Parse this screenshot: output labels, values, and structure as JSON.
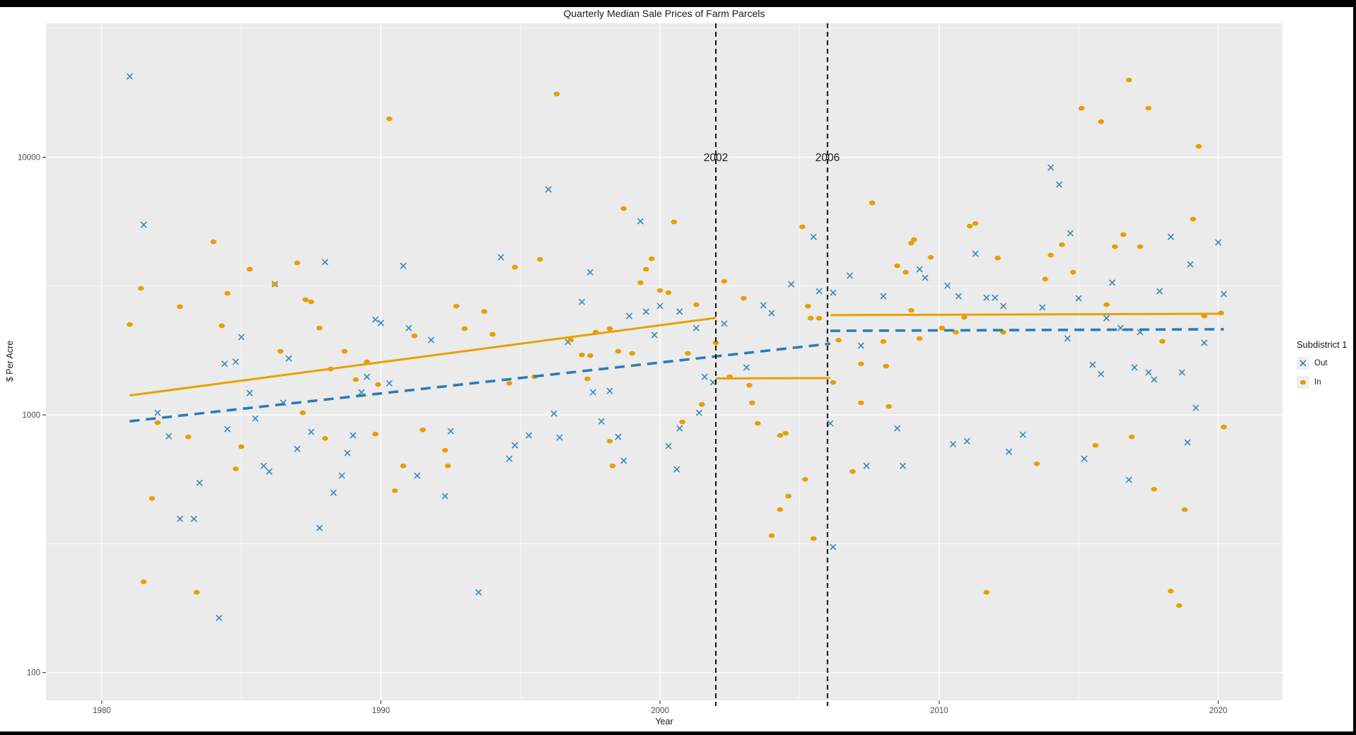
{
  "chart_data": {
    "type": "scatter",
    "title": "Quarterly Median Sale Prices of Farm Parcels",
    "xlabel": "Year",
    "ylabel": "$ Per Acre",
    "x_axis": {
      "range": [
        1978,
        2022.3
      ],
      "ticks": [
        1980,
        1990,
        2000,
        2010,
        2020
      ],
      "minor_ticks": [
        1985,
        1995,
        2005,
        2015
      ]
    },
    "y_axis": {
      "scale": "log10",
      "range": [
        78,
        33100
      ],
      "ticks": [
        100,
        1000,
        10000
      ],
      "tick_labels": [
        "100",
        "1000",
        "10000"
      ],
      "minor_ticks": [
        316,
        3162,
        31623
      ]
    },
    "panel": {
      "bg": "#EBEBEB",
      "grid_major": "#FFFFFF",
      "grid_minor": "#F7F7F7",
      "tick_color": "#333333",
      "tick_label_color": "#4d4d4d"
    },
    "vlines": [
      {
        "x": 2002,
        "label": "2002",
        "color": "#111111"
      },
      {
        "x": 2006,
        "label": "2006",
        "color": "#111111"
      }
    ],
    "legend": {
      "title": "Subdistrict 1",
      "items": [
        {
          "label": "Out",
          "marker": "x",
          "color": "#3787BD"
        },
        {
          "label": "In",
          "marker": "dot",
          "color": "#E69F00"
        }
      ]
    },
    "trend_lines": [
      {
        "series": "In",
        "style": "solid",
        "color": "#E8A000",
        "points": [
          [
            1981.0,
            1190
          ],
          [
            2002.0,
            2380
          ]
        ]
      },
      {
        "series": "In",
        "style": "solid",
        "color": "#E8A000",
        "points": [
          [
            2002.0,
            1385
          ],
          [
            2006.1,
            1390
          ]
        ]
      },
      {
        "series": "In",
        "style": "solid",
        "color": "#E8A000",
        "points": [
          [
            2006.1,
            2440
          ],
          [
            2020.2,
            2470
          ]
        ]
      },
      {
        "series": "Out",
        "style": "dashed",
        "color": "#2C7BB8",
        "points": [
          [
            1981.0,
            945
          ],
          [
            2006.1,
            1890
          ]
        ]
      },
      {
        "series": "Out",
        "style": "dashed",
        "color": "#2C7BB8",
        "points": [
          [
            2006.1,
            2120
          ],
          [
            2020.2,
            2150
          ]
        ]
      }
    ],
    "series": [
      {
        "name": "Out",
        "marker": "x",
        "color": "#3787BD",
        "points": [
          [
            1981,
            20600
          ],
          [
            1981.5,
            5470
          ],
          [
            1986.2,
            3220
          ],
          [
            1985,
            2005
          ],
          [
            1984.4,
            1578
          ],
          [
            1984.8,
            1607
          ],
          [
            1986.7,
            1657
          ],
          [
            1985.3,
            1216
          ],
          [
            1986.5,
            1114
          ],
          [
            1982,
            1019
          ],
          [
            1982.4,
            827
          ],
          [
            1984.5,
            881
          ],
          [
            1985.5,
            969
          ],
          [
            1985.8,
            634
          ],
          [
            1986,
            603
          ],
          [
            1983.5,
            545
          ],
          [
            1982.8,
            395
          ],
          [
            1983.3,
            395
          ],
          [
            1984.2,
            163
          ],
          [
            1988,
            3915
          ],
          [
            1990.8,
            3790
          ],
          [
            1994.3,
            4090
          ],
          [
            1989.8,
            2345
          ],
          [
            1990,
            2275
          ],
          [
            1991,
            2174
          ],
          [
            1991.8,
            1954
          ],
          [
            1989.5,
            1406
          ],
          [
            1989.3,
            1224
          ],
          [
            1990.3,
            1327
          ],
          [
            1987.5,
            859
          ],
          [
            1989,
            832
          ],
          [
            1988.8,
            711
          ],
          [
            1987,
            738
          ],
          [
            1992.5,
            865
          ],
          [
            1994.6,
            676
          ],
          [
            1994.8,
            762
          ],
          [
            1995.3,
            832
          ],
          [
            1988.6,
            581
          ],
          [
            1988.3,
            499
          ],
          [
            1991.3,
            581
          ],
          [
            1992.3,
            484
          ],
          [
            1987.8,
            364
          ],
          [
            1993.5,
            205
          ],
          [
            1996,
            7500
          ],
          [
            1999.3,
            5645
          ],
          [
            1997.5,
            3580
          ],
          [
            1997.2,
            2747
          ],
          [
            2004.7,
            3215
          ],
          [
            1998.9,
            2422
          ],
          [
            1999.5,
            2518
          ],
          [
            2000,
            2645
          ],
          [
            2000.7,
            2518
          ],
          [
            2003.7,
            2662
          ],
          [
            2004,
            2484
          ],
          [
            2002.3,
            2260
          ],
          [
            2001.3,
            2174
          ],
          [
            1999.8,
            2042
          ],
          [
            1996.7,
            1919
          ],
          [
            2001.6,
            1406
          ],
          [
            2003.1,
            1528
          ],
          [
            1998.2,
            1239
          ],
          [
            1997.6,
            1224
          ],
          [
            1996.2,
            1012
          ],
          [
            1997.9,
            944
          ],
          [
            2001.4,
            1019
          ],
          [
            2001.9,
            1337
          ],
          [
            2000.7,
            887
          ],
          [
            2000.3,
            757
          ],
          [
            1998.5,
            822
          ],
          [
            1998.7,
            664
          ],
          [
            2000.6,
            615
          ],
          [
            1996.4,
            817
          ],
          [
            2005.5,
            4910
          ],
          [
            2005.7,
            3020
          ],
          [
            2006.2,
            2983
          ],
          [
            2006.8,
            3470
          ],
          [
            2008,
            2890
          ],
          [
            2009.3,
            3675
          ],
          [
            2009.5,
            3405
          ],
          [
            2010.3,
            3175
          ],
          [
            2010.7,
            2890
          ],
          [
            2011.3,
            4220
          ],
          [
            2011.7,
            2850
          ],
          [
            2012,
            2850
          ],
          [
            2012.3,
            2645
          ],
          [
            2013.7,
            2612
          ],
          [
            2007.2,
            1858
          ],
          [
            2006.1,
            927
          ],
          [
            2008.5,
            887
          ],
          [
            2010.5,
            770
          ],
          [
            2011,
            791
          ],
          [
            2012.5,
            719
          ],
          [
            2013,
            838
          ],
          [
            2007.4,
            634
          ],
          [
            2008.7,
            634
          ],
          [
            2006.2,
            307
          ],
          [
            2014,
            9120
          ],
          [
            2014.3,
            7840
          ],
          [
            2014.7,
            5070
          ],
          [
            2018.3,
            4910
          ],
          [
            2020,
            4670
          ],
          [
            2019,
            3840
          ],
          [
            2016.2,
            3260
          ],
          [
            2015,
            2835
          ],
          [
            2017.9,
            3020
          ],
          [
            2020.2,
            2945
          ],
          [
            2016,
            2375
          ],
          [
            2016.5,
            2175
          ],
          [
            2017.2,
            2095
          ],
          [
            2014.6,
            1980
          ],
          [
            2019.5,
            1905
          ],
          [
            2015.5,
            1567
          ],
          [
            2015.8,
            1442
          ],
          [
            2017,
            1528
          ],
          [
            2017.5,
            1462
          ],
          [
            2017.7,
            1372
          ],
          [
            2018.7,
            1462
          ],
          [
            2019.2,
            1065
          ],
          [
            2018.9,
            782
          ],
          [
            2015.2,
            676
          ],
          [
            2016.8,
            560
          ]
        ]
      },
      {
        "name": "In",
        "marker": "dot",
        "color": "#E69F00",
        "points": [
          [
            1984,
            4700
          ],
          [
            1985.3,
            3675
          ],
          [
            1986.2,
            3215
          ],
          [
            1987,
            3890
          ],
          [
            1981.4,
            3100
          ],
          [
            1982.8,
            2630
          ],
          [
            1984.5,
            2965
          ],
          [
            1981,
            2245
          ],
          [
            1984.3,
            2218
          ],
          [
            1986.4,
            1766
          ],
          [
            1982,
            933
          ],
          [
            1983.1,
            822
          ],
          [
            1985,
            753
          ],
          [
            1984.8,
            618
          ],
          [
            1981.8,
            474
          ],
          [
            1981.5,
            225
          ],
          [
            1983.4,
            205
          ],
          [
            1990.3,
            14100
          ],
          [
            1994.8,
            3743
          ],
          [
            1995.7,
            4015
          ],
          [
            1987.3,
            2800
          ],
          [
            1987.5,
            2747
          ],
          [
            1987.8,
            2174
          ],
          [
            1991.2,
            2028
          ],
          [
            1992.7,
            2645
          ],
          [
            1993,
            2162
          ],
          [
            1993.7,
            2520
          ],
          [
            1994,
            2055
          ],
          [
            1988.7,
            1766
          ],
          [
            1989.5,
            1607
          ],
          [
            1989.1,
            1371
          ],
          [
            1988.2,
            1507
          ],
          [
            1989.9,
            1312
          ],
          [
            1995.5,
            1406
          ],
          [
            1994.6,
            1327
          ],
          [
            1987.2,
            1019
          ],
          [
            1988,
            811
          ],
          [
            1989.8,
            843
          ],
          [
            1991.5,
            875
          ],
          [
            1992.3,
            729
          ],
          [
            1990.8,
            634
          ],
          [
            1990.5,
            508
          ],
          [
            1992.4,
            634
          ],
          [
            1996.3,
            17600
          ],
          [
            1998.7,
            6325
          ],
          [
            2000.5,
            5610
          ],
          [
            1999.7,
            4035
          ],
          [
            1999.5,
            3675
          ],
          [
            1999.3,
            3258
          ],
          [
            2002.3,
            3302
          ],
          [
            2000,
            3040
          ],
          [
            2000.3,
            2983
          ],
          [
            2001.3,
            2679
          ],
          [
            2003,
            2835
          ],
          [
            1996.8,
            1954
          ],
          [
            1997.7,
            2094
          ],
          [
            1998.2,
            2162
          ],
          [
            1997.2,
            1710
          ],
          [
            1997.5,
            1699
          ],
          [
            1998.5,
            1766
          ],
          [
            1999,
            1733
          ],
          [
            2001,
            1733
          ],
          [
            2002,
            1905
          ],
          [
            2002.5,
            1406
          ],
          [
            2003.2,
            1303
          ],
          [
            1997.4,
            1380
          ],
          [
            2001.5,
            1099
          ],
          [
            1998.2,
            791
          ],
          [
            2000.8,
            939
          ],
          [
            2003.3,
            1114
          ],
          [
            2003.5,
            927
          ],
          [
            2004.3,
            832
          ],
          [
            2004.5,
            849
          ],
          [
            2004.6,
            484
          ],
          [
            2004.3,
            429
          ],
          [
            2004,
            340
          ],
          [
            1998.3,
            634
          ],
          [
            2007.6,
            6650
          ],
          [
            2005.1,
            5370
          ],
          [
            2011.1,
            5405
          ],
          [
            2011.3,
            5534
          ],
          [
            2009,
            4645
          ],
          [
            2009.1,
            4790
          ],
          [
            2009.7,
            4090
          ],
          [
            2012.1,
            4065
          ],
          [
            2008.5,
            3790
          ],
          [
            2008.8,
            3580
          ],
          [
            2013.8,
            3365
          ],
          [
            2005.4,
            2375
          ],
          [
            2005.7,
            2375
          ],
          [
            2005.3,
            2645
          ],
          [
            2010.9,
            2392
          ],
          [
            2009,
            2548
          ],
          [
            2006.4,
            1950
          ],
          [
            2008,
            1928
          ],
          [
            2009.3,
            1978
          ],
          [
            2010.1,
            2174
          ],
          [
            2010.6,
            2094
          ],
          [
            2012.3,
            2094
          ],
          [
            2007.2,
            1578
          ],
          [
            2008.1,
            1546
          ],
          [
            2006.2,
            1337
          ],
          [
            2007.2,
            1114
          ],
          [
            2008.2,
            1079
          ],
          [
            2006.9,
            603
          ],
          [
            2013.5,
            646
          ],
          [
            2005.2,
            562
          ],
          [
            2005.5,
            331
          ],
          [
            2011.7,
            205
          ],
          [
            2016.8,
            19950
          ],
          [
            2015.1,
            15500
          ],
          [
            2017.5,
            15500
          ],
          [
            2015.8,
            13740
          ],
          [
            2019.3,
            11030
          ],
          [
            2019.1,
            5755
          ],
          [
            2016.6,
            5010
          ],
          [
            2014.4,
            4580
          ],
          [
            2014,
            4170
          ],
          [
            2016.3,
            4498
          ],
          [
            2017.2,
            4498
          ],
          [
            2014.8,
            3580
          ],
          [
            2016,
            2680
          ],
          [
            2019.5,
            2420
          ],
          [
            2020.1,
            2485
          ],
          [
            2018,
            1930
          ],
          [
            2020.2,
            898
          ],
          [
            2016.9,
            822
          ],
          [
            2015.6,
            762
          ],
          [
            2017.7,
            515
          ],
          [
            2018.8,
            429
          ],
          [
            2018.3,
            207
          ],
          [
            2018.6,
            182
          ]
        ]
      }
    ]
  }
}
